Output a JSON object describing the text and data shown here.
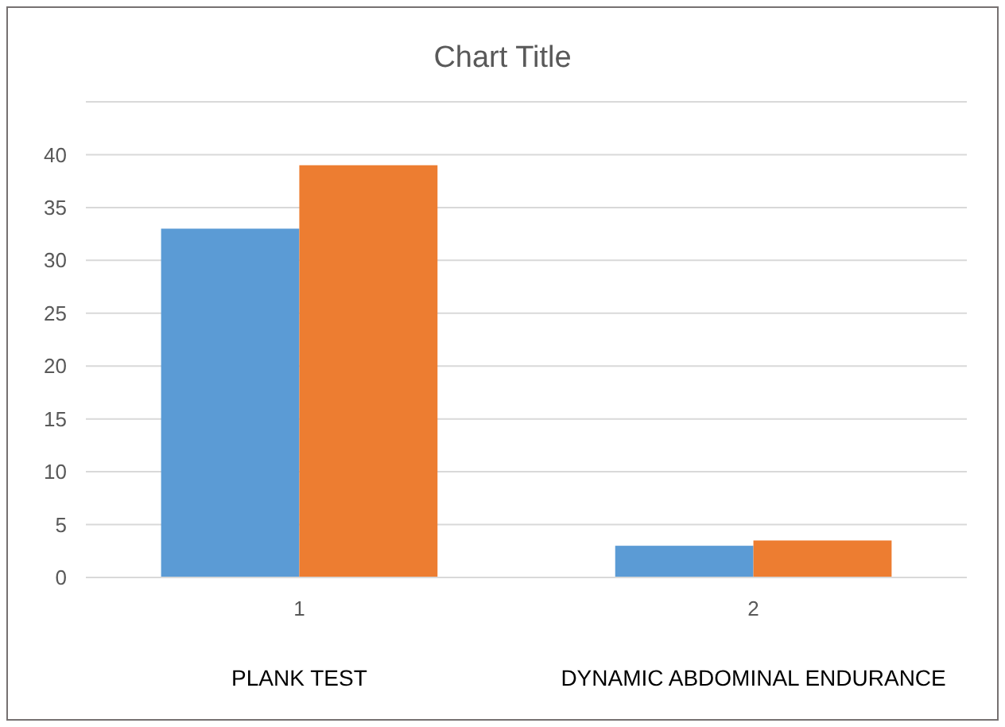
{
  "chart_data": {
    "type": "bar",
    "title": "Chart Title",
    "categories": [
      "1",
      "2"
    ],
    "series": [
      {
        "color": "#5b9bd5",
        "values": [
          33,
          3
        ]
      },
      {
        "color": "#ed7d31",
        "values": [
          39,
          3.5
        ]
      }
    ],
    "ylim": [
      0,
      45
    ],
    "yticks": [
      0,
      5,
      10,
      15,
      20,
      25,
      30,
      35,
      40,
      {
        "value": 45,
        "label": null
      }
    ],
    "grid": "y",
    "annotations": [
      "PLANK TEST",
      "DYNAMIC ABDOMINAL ENDURANCE"
    ]
  }
}
